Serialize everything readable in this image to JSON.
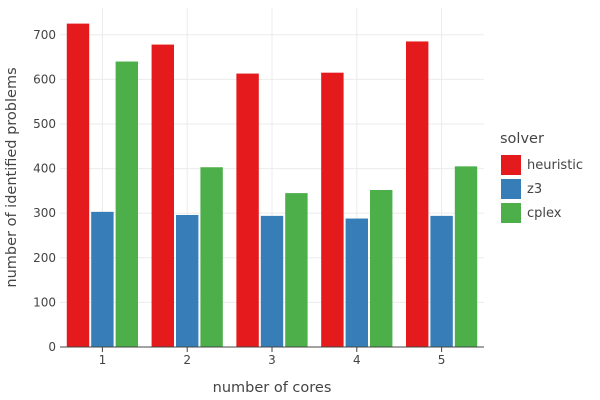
{
  "chart_data": {
    "type": "bar",
    "categories": [
      "1",
      "2",
      "3",
      "4",
      "5"
    ],
    "series": [
      {
        "name": "heuristic",
        "color": "#e41a1c",
        "values": [
          725,
          678,
          613,
          615,
          685
        ]
      },
      {
        "name": "z3",
        "color": "#377eb8",
        "values": [
          303,
          296,
          294,
          288,
          294
        ]
      },
      {
        "name": "cplex",
        "color": "#4daf4a",
        "values": [
          640,
          403,
          345,
          352,
          405
        ]
      }
    ],
    "xlabel": "number of cores",
    "ylabel": "number of identified problems",
    "yticks": [
      0,
      100,
      200,
      300,
      400,
      500,
      600,
      700
    ],
    "ylim": [
      0,
      760
    ],
    "grid": true,
    "legend": {
      "title": "solver",
      "placement": "right"
    }
  }
}
